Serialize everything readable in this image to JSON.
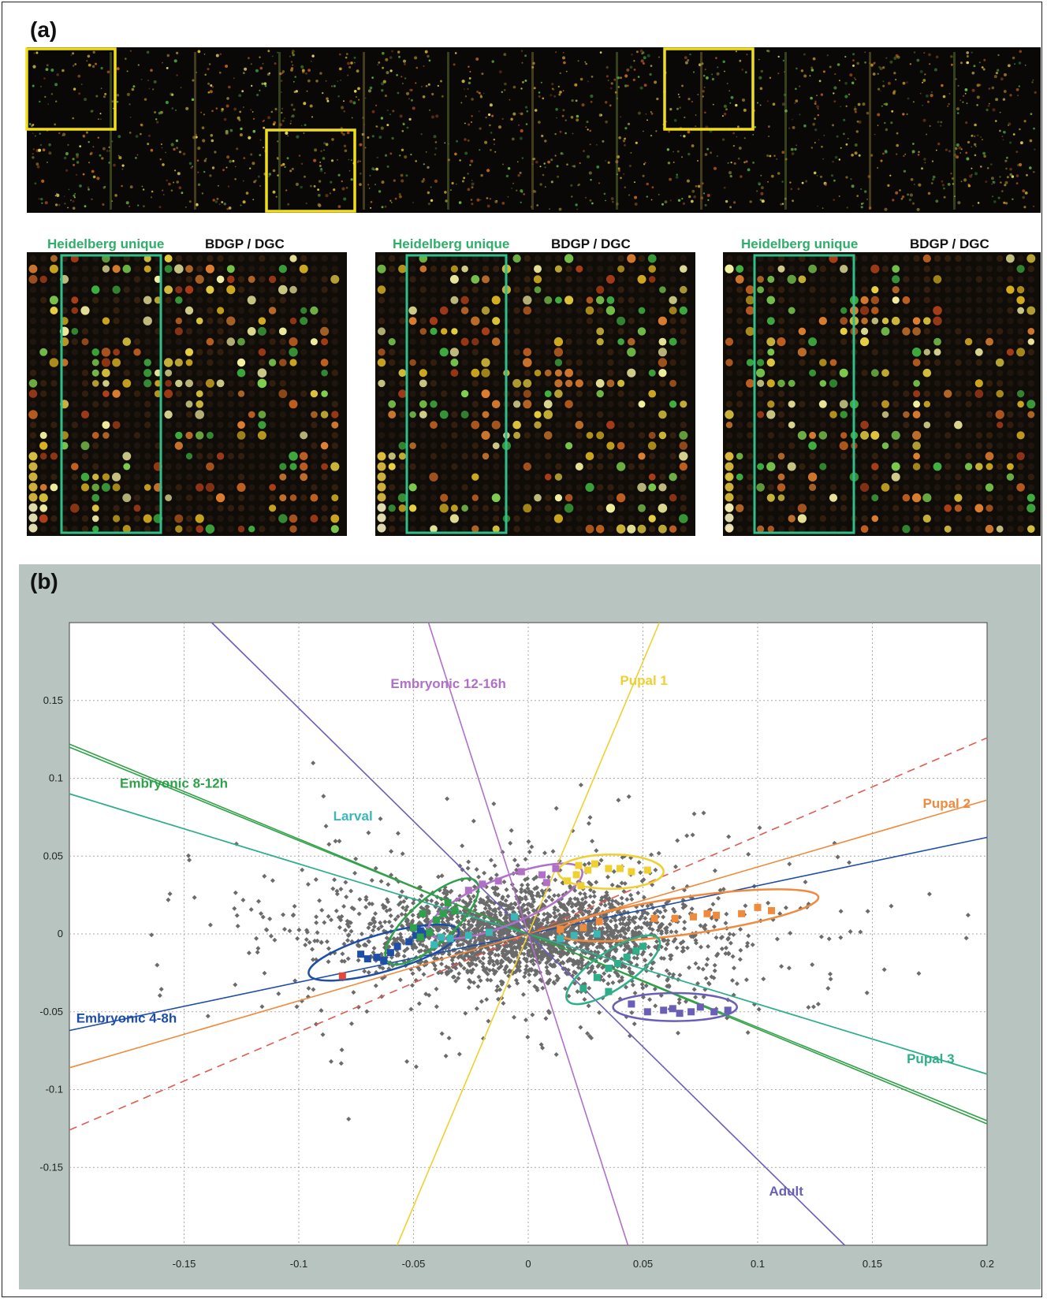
{
  "panel_a": {
    "label": "(a)",
    "zoom_panels": [
      {
        "unique_label": "Heidelberg unique",
        "other_label": "BDGP / DGC"
      },
      {
        "unique_label": "Heidelberg unique",
        "other_label": "BDGP / DGC"
      },
      {
        "unique_label": "Heidelberg unique",
        "other_label": "BDGP / DGC"
      }
    ],
    "colors": {
      "highlight_box": "#f2dd1c",
      "unique_box": "#2fbf8a",
      "unique_label": "#2fae6a"
    }
  },
  "panel_b": {
    "label": "(b)",
    "background": "#b7c4c0"
  },
  "chart_data": {
    "type": "scatter",
    "xlim": [
      -0.2,
      0.2
    ],
    "ylim": [
      -0.2,
      0.2
    ],
    "xticks": [
      -0.15,
      -0.1,
      -0.05,
      0,
      0.05,
      0.1,
      0.15,
      0.2
    ],
    "yticks": [
      0.15,
      0.1,
      0.05,
      0,
      -0.05,
      -0.1,
      -0.15
    ],
    "grid": true,
    "background_points_color": "#6b6b6b",
    "projection_lines": [
      {
        "label": "Embryonic 4-8h",
        "color": "#1f4ea8",
        "dashed": false,
        "slope": 0.31,
        "label_x": -0.197,
        "label_y": -0.057,
        "label_color": "#1f4ea8"
      },
      {
        "label": "Embryonic 8-12h",
        "color": "#2da24a",
        "dashed": false,
        "slope": -0.6,
        "label_x": -0.178,
        "label_y": 0.094,
        "label_color": "#2da24a"
      },
      {
        "label": "Larval",
        "color": "#3ab7b7",
        "dashed": false,
        "slope": -0.45,
        "label_x": -0.085,
        "label_y": 0.073,
        "label_color": "#3ab7b7"
      },
      {
        "label": "Embryonic 12-16h",
        "color": "#b070c8",
        "dashed": false,
        "slope": -4.6,
        "label_x": -0.06,
        "label_y": 0.158,
        "label_color": "#b070c8"
      },
      {
        "label": "Pupal 1",
        "color": "#f0d030",
        "dashed": false,
        "slope": 3.5,
        "label_x": 0.04,
        "label_y": 0.16,
        "label_color": "#f0d030"
      },
      {
        "label": "Pupal 2",
        "color": "#f08a3c",
        "dashed": false,
        "slope": 0.43,
        "label_x": 0.172,
        "label_y": 0.081,
        "label_color": "#f08a3c"
      },
      {
        "label": "Pupal 2",
        "color": "#e05a50",
        "dashed": true,
        "slope": 0.63,
        "label_x": null,
        "label_y": null,
        "label_color": "#e05a50"
      },
      {
        "label": "Pupal 3",
        "color": "#2fae8a",
        "dashed": false,
        "slope": -0.45,
        "label_x": 0.165,
        "label_y": -0.083,
        "label_color": "#2fae8a"
      },
      {
        "label": "Pupal 3",
        "color": "#34a045",
        "dashed": false,
        "slope": -0.61,
        "label_x": null,
        "label_y": null,
        "label_color": "#34a045"
      },
      {
        "label": "Adult",
        "color": "#6a5fb8",
        "dashed": false,
        "slope": -1.45,
        "label_x": 0.105,
        "label_y": -0.168,
        "label_color": "#6a5fb8"
      }
    ],
    "clusters": [
      {
        "name": "Embryonic 4-8h",
        "color": "#1f4ea8",
        "center": [
          -0.063,
          -0.012
        ],
        "rx": 0.034,
        "ry": 0.012,
        "angle": 16,
        "points": [
          [
            -0.073,
            -0.013
          ],
          [
            -0.07,
            -0.016
          ],
          [
            -0.066,
            -0.015
          ],
          [
            -0.063,
            -0.017
          ],
          [
            -0.06,
            -0.012
          ],
          [
            -0.057,
            -0.008
          ],
          [
            -0.052,
            -0.005
          ],
          [
            -0.049,
            -0.001
          ],
          [
            -0.046,
            0.0
          ],
          [
            -0.047,
            0.002
          ]
        ]
      },
      {
        "name": "Embryonic 8-12h",
        "color": "#2da24a",
        "center": [
          -0.042,
          0.008
        ],
        "rx": 0.026,
        "ry": 0.014,
        "angle": 42,
        "points": [
          [
            -0.05,
            0.004
          ],
          [
            -0.047,
            -0.002
          ],
          [
            -0.043,
            0.001
          ],
          [
            -0.04,
            0.009
          ],
          [
            -0.037,
            0.013
          ],
          [
            -0.035,
            0.02
          ],
          [
            -0.032,
            0.015
          ],
          [
            -0.046,
            0.013
          ]
        ]
      },
      {
        "name": "Larval",
        "color": "#3ab7b7",
        "points": [
          [
            -0.041,
            -0.007
          ],
          [
            -0.038,
            -0.002
          ],
          [
            -0.034,
            -0.003
          ],
          [
            -0.026,
            -0.001
          ],
          [
            -0.017,
            0.001
          ],
          [
            -0.006,
            0.011
          ],
          [
            0.014,
            -0.003
          ],
          [
            0.02,
            -0.001
          ],
          [
            0.024,
            0.004
          ],
          [
            0.03,
            0.0
          ]
        ]
      },
      {
        "name": "Embryonic 12-16h",
        "color": "#b070c8",
        "center": [
          -0.01,
          0.021
        ],
        "rx": 0.036,
        "ry": 0.015,
        "angle": 22,
        "points": [
          [
            -0.026,
            0.028
          ],
          [
            -0.02,
            0.032
          ],
          [
            -0.013,
            0.034
          ],
          [
            -0.003,
            0.04
          ],
          [
            0.006,
            0.038
          ],
          [
            0.012,
            0.042
          ],
          [
            0.008,
            0.033
          ]
        ]
      },
      {
        "name": "Pupal 1",
        "color": "#f0d030",
        "center": [
          0.036,
          0.04
        ],
        "rx": 0.023,
        "ry": 0.011,
        "angle": 0,
        "points": [
          [
            0.017,
            0.034
          ],
          [
            0.021,
            0.038
          ],
          [
            0.022,
            0.044
          ],
          [
            0.026,
            0.041
          ],
          [
            0.029,
            0.045
          ],
          [
            0.035,
            0.042
          ],
          [
            0.04,
            0.042
          ],
          [
            0.045,
            0.04
          ],
          [
            0.052,
            0.041
          ],
          [
            0.023,
            0.031
          ]
        ]
      },
      {
        "name": "Pupal 2",
        "color": "#f08a3c",
        "center": [
          0.07,
          0.012
        ],
        "rx": 0.057,
        "ry": 0.012,
        "angle": 8,
        "points": [
          [
            0.014,
            0.003
          ],
          [
            0.024,
            0.004
          ],
          [
            0.031,
            0.008
          ],
          [
            0.055,
            0.01
          ],
          [
            0.064,
            0.01
          ],
          [
            0.072,
            0.011
          ],
          [
            0.078,
            0.013
          ],
          [
            0.082,
            0.012
          ],
          [
            0.093,
            0.013
          ],
          [
            0.1,
            0.017
          ],
          [
            0.106,
            0.015
          ]
        ]
      },
      {
        "name": "Pupal 3",
        "color": "#2fae8a",
        "center": [
          0.037,
          -0.023
        ],
        "rx": 0.024,
        "ry": 0.012,
        "angle": 34,
        "points": [
          [
            0.024,
            -0.035
          ],
          [
            0.03,
            -0.028
          ],
          [
            0.035,
            -0.022
          ],
          [
            0.039,
            -0.019
          ],
          [
            0.043,
            -0.015
          ],
          [
            0.047,
            -0.011
          ],
          [
            0.05,
            -0.008
          ],
          [
            0.035,
            -0.037
          ]
        ]
      },
      {
        "name": "Adult",
        "color": "#6a5fb8",
        "center": [
          0.064,
          -0.047
        ],
        "rx": 0.027,
        "ry": 0.009,
        "angle": 0,
        "points": [
          [
            0.045,
            -0.045
          ],
          [
            0.052,
            -0.05
          ],
          [
            0.059,
            -0.049
          ],
          [
            0.063,
            -0.048
          ],
          [
            0.066,
            -0.051
          ],
          [
            0.071,
            -0.05
          ],
          [
            0.075,
            -0.047
          ],
          [
            0.081,
            -0.05
          ],
          [
            0.087,
            -0.049
          ]
        ]
      },
      {
        "name": "Embryonic 4-8h",
        "color": "#e04a3a",
        "points": [
          [
            -0.081,
            -0.027
          ]
        ]
      }
    ]
  }
}
